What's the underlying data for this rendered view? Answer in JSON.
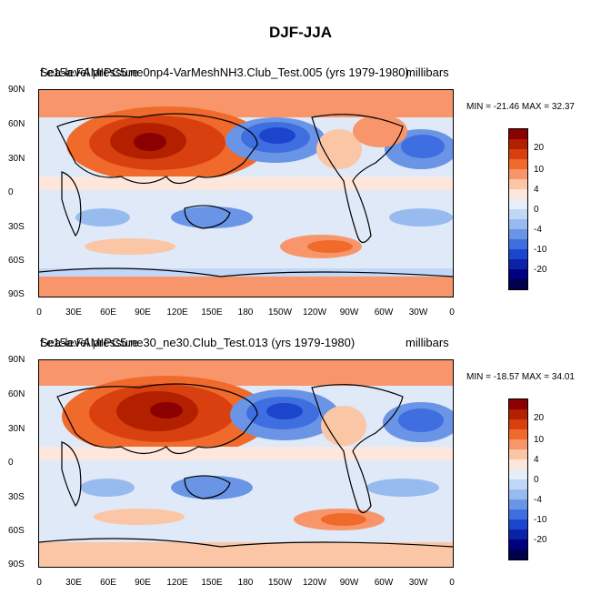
{
  "figure_title": "DJF-JJA",
  "panels": [
    {
      "left_title": "Sea-level pressure",
      "overlay_title": "f.e15a.FAMIPC5.ne0np4-VarMeshNH3.Club_Test.005 (yrs 1979-1980)",
      "units": "millibars",
      "min_label": "MIN = -21.46",
      "max_label": "MAX =  32.37",
      "minmax": "MIN = -21.46 MAX =  32.37"
    },
    {
      "left_title": "Sea-level pressure",
      "overlay_title": "f.e15a.FAMIPC5.ne30_ne30.Club_Test.013 (yrs 1979-1980)",
      "units": "millibars",
      "minmax": "MIN = -18.57 MAX =  34.01"
    }
  ],
  "axes": {
    "lat_labels": [
      "90N",
      "60N",
      "30N",
      "0",
      "30S",
      "60S",
      "90S"
    ],
    "lon_labels": [
      "0",
      "30E",
      "60E",
      "90E",
      "120E",
      "150E",
      "180",
      "150W",
      "120W",
      "90W",
      "60W",
      "30W",
      "0"
    ]
  },
  "colorbar": {
    "labels": [
      "20",
      "10",
      "4",
      "0",
      "-4",
      "-10",
      "-20"
    ],
    "colors": [
      "#8b0000",
      "#b22000",
      "#d84010",
      "#f06a2c",
      "#f8956a",
      "#fbc6a5",
      "#fde6dc",
      "#e6eefa",
      "#c2d6f5",
      "#98bbef",
      "#6a95e6",
      "#3f6ee0",
      "#1b45cc",
      "#0b22a8",
      "#000080",
      "#00004d"
    ]
  }
}
